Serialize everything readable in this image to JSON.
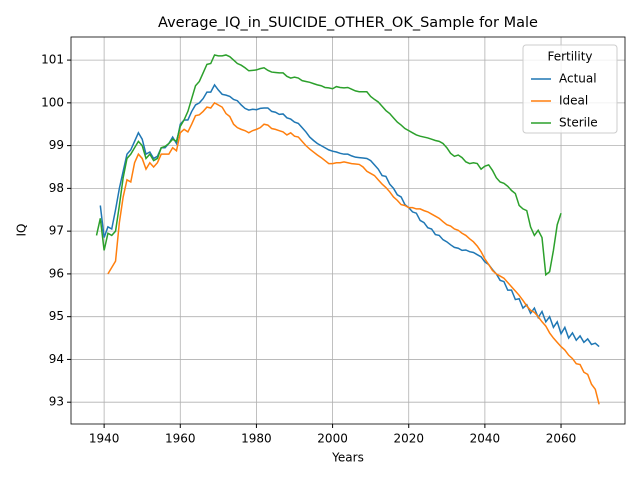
{
  "chart_data": {
    "type": "line",
    "title": "Average_IQ_in_SUICIDE_OTHER_OK_Sample for Male",
    "x_label": "Years",
    "y_label": "IQ",
    "legend_title": "Fertility",
    "legend_position": "upper right",
    "grid": true,
    "xlim": [
      1931.3,
      2076.8
    ],
    "xticks": [
      1940,
      1960,
      1980,
      2000,
      2020,
      2040,
      2060
    ],
    "ylim": [
      92.49,
      101.54
    ],
    "yticks": [
      93,
      94,
      95,
      96,
      97,
      98,
      99,
      100,
      101
    ],
    "x": [
      1938,
      1939,
      1940,
      1941,
      1942,
      1943,
      1944,
      1945,
      1946,
      1947,
      1948,
      1949,
      1950,
      1951,
      1952,
      1953,
      1954,
      1955,
      1956,
      1957,
      1958,
      1959,
      1960,
      1961,
      1962,
      1963,
      1964,
      1965,
      1966,
      1967,
      1968,
      1969,
      1970,
      1971,
      1972,
      1973,
      1974,
      1975,
      1976,
      1977,
      1978,
      1979,
      1980,
      1981,
      1982,
      1983,
      1984,
      1985,
      1986,
      1987,
      1988,
      1989,
      1990,
      1991,
      1992,
      1993,
      1994,
      1995,
      1996,
      1997,
      1998,
      1999,
      2000,
      2001,
      2002,
      2003,
      2004,
      2005,
      2006,
      2007,
      2008,
      2009,
      2010,
      2011,
      2012,
      2013,
      2014,
      2015,
      2016,
      2017,
      2018,
      2019,
      2020,
      2021,
      2022,
      2023,
      2024,
      2025,
      2026,
      2027,
      2028,
      2029,
      2030,
      2031,
      2032,
      2033,
      2034,
      2035,
      2036,
      2037,
      2038,
      2039,
      2040,
      2041,
      2042,
      2043,
      2044,
      2045,
      2046,
      2047,
      2048,
      2049,
      2050,
      2051,
      2052,
      2053,
      2054,
      2055,
      2056,
      2057,
      2058,
      2059,
      2060,
      2061,
      2062,
      2063,
      2064,
      2065,
      2066,
      2067,
      2068,
      2069,
      2070
    ],
    "series": [
      {
        "name": "Actual",
        "color": "#1f77b4",
        "values": [
          null,
          97.6,
          96.85,
          97.1,
          97.05,
          97.5,
          98.0,
          98.4,
          98.8,
          98.9,
          99.1,
          99.3,
          99.15,
          98.8,
          98.85,
          98.7,
          98.75,
          98.95,
          98.95,
          99.05,
          99.2,
          99.05,
          99.5,
          99.6,
          99.6,
          99.8,
          99.95,
          100.0,
          100.1,
          100.25,
          100.25,
          100.42,
          100.3,
          100.2,
          100.18,
          100.15,
          100.08,
          100.05,
          99.95,
          99.87,
          99.83,
          99.85,
          99.84,
          99.87,
          99.88,
          99.88,
          99.8,
          99.78,
          99.73,
          99.74,
          99.65,
          99.62,
          99.55,
          99.52,
          99.42,
          99.32,
          99.2,
          99.12,
          99.05,
          99.0,
          98.95,
          98.9,
          98.87,
          98.85,
          98.82,
          98.8,
          98.8,
          98.76,
          98.73,
          98.72,
          98.71,
          98.7,
          98.65,
          98.55,
          98.45,
          98.3,
          98.28,
          98.1,
          98.0,
          97.85,
          97.8,
          97.62,
          97.55,
          97.45,
          97.42,
          97.25,
          97.2,
          97.08,
          97.05,
          96.92,
          96.9,
          96.8,
          96.75,
          96.68,
          96.62,
          96.6,
          96.55,
          96.56,
          96.52,
          96.5,
          96.45,
          96.4,
          96.28,
          96.22,
          96.1,
          96.0,
          95.85,
          95.82,
          95.62,
          95.62,
          95.4,
          95.42,
          95.2,
          95.28,
          95.08,
          95.2,
          94.98,
          95.12,
          94.88,
          95.0,
          94.75,
          94.88,
          94.6,
          94.75,
          94.5,
          94.62,
          94.45,
          94.55,
          94.4,
          94.48,
          94.35,
          94.38,
          94.3
        ]
      },
      {
        "name": "Ideal",
        "color": "#ff7f0e",
        "values": [
          null,
          null,
          null,
          96.0,
          96.15,
          96.3,
          97.2,
          97.8,
          98.2,
          98.15,
          98.6,
          98.8,
          98.7,
          98.45,
          98.6,
          98.5,
          98.6,
          98.8,
          98.8,
          98.8,
          98.95,
          98.88,
          99.3,
          99.38,
          99.32,
          99.5,
          99.7,
          99.72,
          99.8,
          99.9,
          99.88,
          100.0,
          99.95,
          99.9,
          99.75,
          99.68,
          99.5,
          99.42,
          99.38,
          99.35,
          99.3,
          99.35,
          99.38,
          99.42,
          99.5,
          99.48,
          99.4,
          99.38,
          99.35,
          99.32,
          99.25,
          99.3,
          99.22,
          99.2,
          99.1,
          99.0,
          98.92,
          98.85,
          98.78,
          98.72,
          98.65,
          98.58,
          98.58,
          98.6,
          98.6,
          98.62,
          98.6,
          98.58,
          98.57,
          98.56,
          98.5,
          98.4,
          98.35,
          98.3,
          98.2,
          98.1,
          98.02,
          97.92,
          97.8,
          97.72,
          97.62,
          97.6,
          97.55,
          97.55,
          97.52,
          97.52,
          97.48,
          97.45,
          97.4,
          97.35,
          97.3,
          97.22,
          97.15,
          97.12,
          97.05,
          97.02,
          96.95,
          96.9,
          96.82,
          96.75,
          96.65,
          96.52,
          96.35,
          96.22,
          96.08,
          96.0,
          95.95,
          95.9,
          95.8,
          95.7,
          95.6,
          95.5,
          95.38,
          95.25,
          95.15,
          95.1,
          95.0,
          94.88,
          94.78,
          94.62,
          94.5,
          94.4,
          94.3,
          94.22,
          94.1,
          94.02,
          93.9,
          93.88,
          93.7,
          93.65,
          93.42,
          93.3,
          92.95
        ]
      },
      {
        "name": "Sterile",
        "color": "#2ca02c",
        "values": [
          96.9,
          97.3,
          96.55,
          96.95,
          96.9,
          97.0,
          97.6,
          98.25,
          98.7,
          98.8,
          98.95,
          99.1,
          99.0,
          98.7,
          98.8,
          98.65,
          98.7,
          98.95,
          98.98,
          99.05,
          99.15,
          99.1,
          99.45,
          99.6,
          99.8,
          100.1,
          100.4,
          100.5,
          100.7,
          100.9,
          100.92,
          101.12,
          101.1,
          101.1,
          101.12,
          101.08,
          101.0,
          100.92,
          100.88,
          100.82,
          100.75,
          100.76,
          100.77,
          100.8,
          100.82,
          100.76,
          100.72,
          100.71,
          100.7,
          100.7,
          100.62,
          100.58,
          100.6,
          100.58,
          100.52,
          100.5,
          100.48,
          100.45,
          100.42,
          100.4,
          100.36,
          100.35,
          100.33,
          100.38,
          100.36,
          100.35,
          100.36,
          100.32,
          100.28,
          100.26,
          100.26,
          100.26,
          100.15,
          100.08,
          100.02,
          99.92,
          99.82,
          99.75,
          99.65,
          99.55,
          99.48,
          99.4,
          99.35,
          99.3,
          99.25,
          99.22,
          99.2,
          99.18,
          99.15,
          99.12,
          99.1,
          99.05,
          98.95,
          98.82,
          98.75,
          98.78,
          98.72,
          98.62,
          98.58,
          98.6,
          98.58,
          98.45,
          98.52,
          98.55,
          98.42,
          98.25,
          98.15,
          98.12,
          98.05,
          97.95,
          97.88,
          97.6,
          97.52,
          97.48,
          97.1,
          96.9,
          97.02,
          96.85,
          95.98,
          96.05,
          96.55,
          97.15,
          97.42,
          null,
          null,
          null,
          null,
          null,
          null,
          null,
          null,
          null,
          null
        ]
      }
    ]
  }
}
